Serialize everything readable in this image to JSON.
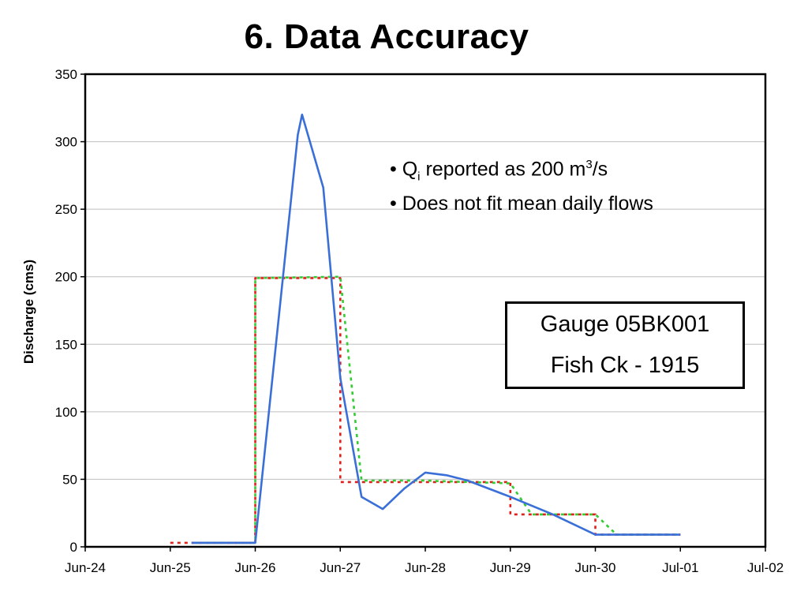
{
  "title": "6. Data Accuracy",
  "notes": {
    "line1_prefix": "• Q",
    "line1_sub": "i",
    "line1_mid": " reported as 200 m",
    "line1_sup": "3",
    "line1_suffix": "/s",
    "line2": "• Does not fit mean daily flows"
  },
  "gauge_box": {
    "line1": "Gauge 05BK001",
    "line2": "Fish Ck - 1915"
  },
  "colors": {
    "hydrograph": "#3a6fd8",
    "daily_red": "#e0201b",
    "daily_green": "#33cc33",
    "grid": "#bfbfbf"
  },
  "chart_data": {
    "type": "line",
    "title": "6. Data Accuracy",
    "xlabel": "",
    "ylabel": "Discharge (cms)",
    "ylim": [
      0,
      350
    ],
    "yticks": [
      0,
      50,
      100,
      150,
      200,
      250,
      300,
      350
    ],
    "xlim": [
      "1915-06-24",
      "1915-07-02"
    ],
    "xtick_labels": [
      "Jun-24",
      "Jun-25",
      "Jun-26",
      "Jun-27",
      "Jun-28",
      "Jun-29",
      "Jun-30",
      "Jul-01",
      "Jul-02"
    ],
    "grid": "horizontal",
    "series": [
      {
        "style": "solid",
        "color": "#3a6fd8",
        "x": [
          "1915-06-25 06:00",
          "1915-06-26 00:00",
          "1915-06-26 12:00",
          "1915-06-26 13:12",
          "1915-06-26 19:12",
          "1915-06-27 00:00",
          "1915-06-27 06:00",
          "1915-06-27 12:00",
          "1915-06-27 18:00",
          "1915-06-28 00:00",
          "1915-06-28 06:00",
          "1915-06-28 12:00",
          "1915-06-29 00:00",
          "1915-06-29 12:00",
          "1915-06-30 00:00",
          "1915-07-01 00:00"
        ],
        "y": [
          3,
          3,
          305,
          320,
          266,
          125,
          37,
          28,
          43,
          55,
          53,
          49,
          37,
          24,
          9,
          9
        ]
      },
      {
        "style": "dashed-step",
        "color": "#e0201b",
        "x": [
          "1915-06-25 00:00",
          "1915-06-26 00:00",
          "1915-06-26 00:00",
          "1915-06-27 00:00",
          "1915-06-27 00:00",
          "1915-06-29 00:00",
          "1915-06-29 00:00",
          "1915-06-30 00:00",
          "1915-06-30 00:00",
          "1915-07-01 00:00"
        ],
        "y": [
          3,
          3,
          199,
          199,
          48,
          48,
          24,
          24,
          9,
          9
        ]
      },
      {
        "style": "dashed",
        "color": "#33cc33",
        "x": [
          "1915-06-25 06:00",
          "1915-06-26 00:00",
          "1915-06-26 00:00",
          "1915-06-27 00:00",
          "1915-06-27 06:00",
          "1915-06-28 00:00",
          "1915-06-29 00:00",
          "1915-06-29 06:00",
          "1915-06-30 00:00",
          "1915-06-30 06:00",
          "1915-07-01 00:00"
        ],
        "y": [
          3,
          3,
          199,
          200,
          49,
          49,
          47,
          24,
          24,
          9,
          9
        ]
      }
    ]
  }
}
